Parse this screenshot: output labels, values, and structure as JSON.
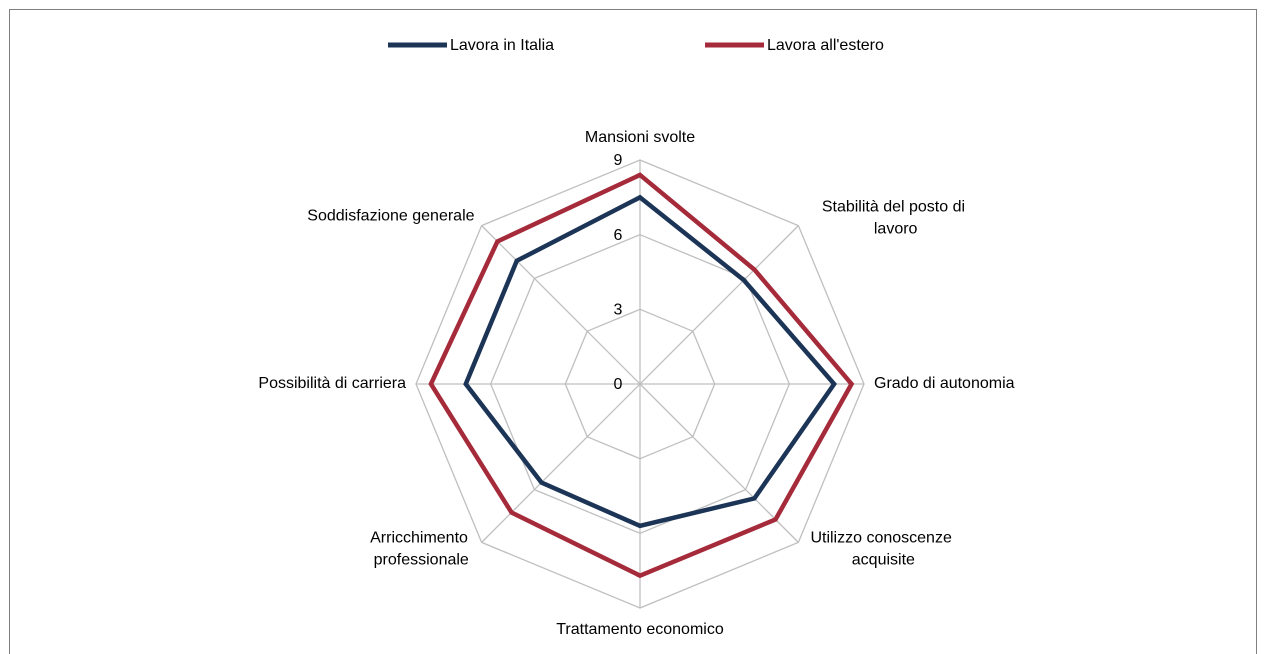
{
  "chart_data": {
    "type": "radar",
    "categories": [
      "Mansioni svolte",
      "Stabilità del posto di lavoro",
      "Grado di autonomia",
      "Utilizzo conoscenze acquisite",
      "Trattamento economico",
      "Arricchimento professionale",
      "Possibilità di carriera",
      "Soddisfazione generale"
    ],
    "series": [
      {
        "name": "Lavora in Italia",
        "color": "#1c3557",
        "values": [
          7.5,
          5.9,
          7.8,
          6.5,
          5.7,
          5.6,
          7.0,
          7.0
        ]
      },
      {
        "name": "Lavora all'estero",
        "color": "#a52a3a",
        "values": [
          8.4,
          6.5,
          8.5,
          7.7,
          7.7,
          7.3,
          8.4,
          8.1
        ]
      }
    ],
    "ylim": [
      0,
      9
    ],
    "yticks": [
      0,
      3,
      6,
      9
    ],
    "grid": true,
    "legend": "top"
  }
}
